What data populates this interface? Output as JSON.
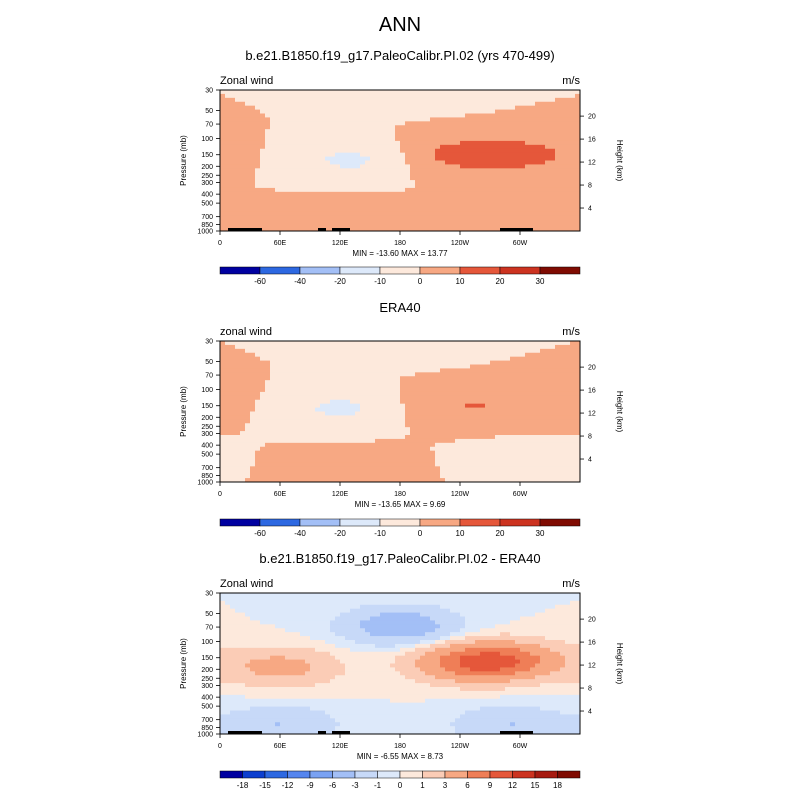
{
  "page": {
    "title": "ANN"
  },
  "chart_data": [
    {
      "type": "heatmap",
      "title": "b.e21.B1850.f19_g17.PaleoCalibr.PI.02 (yrs 470-499)",
      "left_label": "Zonal wind",
      "right_label": "m/s",
      "ylabel": "Pressure (mb)",
      "ylabel2": "Height (km)",
      "x_ticks": [
        "0",
        "60E",
        "120E",
        "180",
        "120W",
        "60W"
      ],
      "y_ticks": [
        "30",
        "50",
        "70",
        "100",
        "150",
        "200",
        "250",
        "300",
        "400",
        "500",
        "700",
        "850",
        "1000"
      ],
      "height_ticks": [
        "4",
        "8",
        "12",
        "16",
        "20"
      ],
      "stats": "MIN = -13.60  MAX =  13.77",
      "levels": [
        -60,
        -40,
        -20,
        -10,
        0,
        10,
        20,
        30
      ],
      "colorbar_labels": [
        "-60",
        "-40",
        "-20",
        "-10",
        "0",
        "10",
        "20",
        "30"
      ],
      "min": -13.6,
      "max": 13.77,
      "features": [
        {
          "lon": 180,
          "p": 30,
          "value": -4
        },
        {
          "lon": 130,
          "p": 170,
          "value": -12
        },
        {
          "lon": 240,
          "p": 150,
          "value": 13
        },
        {
          "lon": 310,
          "p": 150,
          "value": 12
        },
        {
          "lon": 130,
          "p": 750,
          "value": 6
        },
        {
          "lon": 40,
          "p": 900,
          "value": 3
        }
      ]
    },
    {
      "type": "heatmap",
      "title": "ERA40",
      "left_label": "zonal wind",
      "right_label": "m/s",
      "ylabel": "Pressure (mb)",
      "ylabel2": "Height (km)",
      "x_ticks": [
        "0",
        "60E",
        "120E",
        "180",
        "120W",
        "60W"
      ],
      "y_ticks": [
        "30",
        "50",
        "70",
        "100",
        "150",
        "200",
        "250",
        "300",
        "400",
        "500",
        "700",
        "850",
        "1000"
      ],
      "height_ticks": [
        "4",
        "8",
        "12",
        "16",
        "20"
      ],
      "stats": "MIN = -13.65  MAX =   9.69",
      "levels": [
        -60,
        -40,
        -20,
        -10,
        0,
        10,
        20,
        30
      ],
      "colorbar_labels": [
        "-60",
        "-40",
        "-20",
        "-10",
        "0",
        "10",
        "20",
        "30"
      ],
      "min": -13.65,
      "max": 9.69,
      "features": [
        {
          "lon": 180,
          "p": 30,
          "value": -5
        },
        {
          "lon": 120,
          "p": 160,
          "value": -12
        },
        {
          "lon": 240,
          "p": 150,
          "value": 9
        },
        {
          "lon": 320,
          "p": 130,
          "value": 8
        },
        {
          "lon": 300,
          "p": 600,
          "value": -3
        },
        {
          "lon": 130,
          "p": 720,
          "value": 4
        }
      ]
    },
    {
      "type": "heatmap",
      "title": "b.e21.B1850.f19_g17.PaleoCalibr.PI.02 - ERA40",
      "left_label": "Zonal wind",
      "right_label": "m/s",
      "ylabel": "Pressure (mb)",
      "ylabel2": "Height (km)",
      "x_ticks": [
        "0",
        "60E",
        "120E",
        "180",
        "120W",
        "60W"
      ],
      "y_ticks": [
        "30",
        "50",
        "70",
        "100",
        "150",
        "200",
        "250",
        "300",
        "400",
        "500",
        "700",
        "850",
        "1000"
      ],
      "height_ticks": [
        "4",
        "8",
        "12",
        "16",
        "20"
      ],
      "stats": "MIN =  -6.55  MAX =   8.73",
      "levels": [
        -18,
        -15,
        -12,
        -9,
        -6,
        -3,
        -1,
        0,
        1,
        3,
        6,
        9,
        12,
        15,
        18
      ],
      "colorbar_labels": [
        "-18",
        "-15",
        "-12",
        "-9",
        "-6",
        "-3",
        "-1",
        "0",
        "1",
        "3",
        "6",
        "9",
        "12",
        "15",
        "18"
      ],
      "min": -6.55,
      "max": 8.73,
      "features": [
        {
          "lon": 180,
          "p": 68,
          "value": -5
        },
        {
          "lon": 60,
          "p": 190,
          "value": 4
        },
        {
          "lon": 250,
          "p": 170,
          "value": 7
        },
        {
          "lon": 290,
          "p": 160,
          "value": 6
        },
        {
          "lon": 290,
          "p": 800,
          "value": -3
        },
        {
          "lon": 60,
          "p": 800,
          "value": -3
        }
      ]
    }
  ],
  "colors": {
    "neg": [
      "#0000a0",
      "#0d3fcf",
      "#2d68e1",
      "#5585ef",
      "#7aa2f3",
      "#a3bff6",
      "#c7d9f8",
      "#dde9fa"
    ],
    "pos": [
      "#fde9dc",
      "#fbccb6",
      "#f7a883",
      "#ef7e57",
      "#e5573a",
      "#cc3320",
      "#a61a10",
      "#7f0b02"
    ],
    "zero": "#fef6f0",
    "terrain": "#000000"
  }
}
